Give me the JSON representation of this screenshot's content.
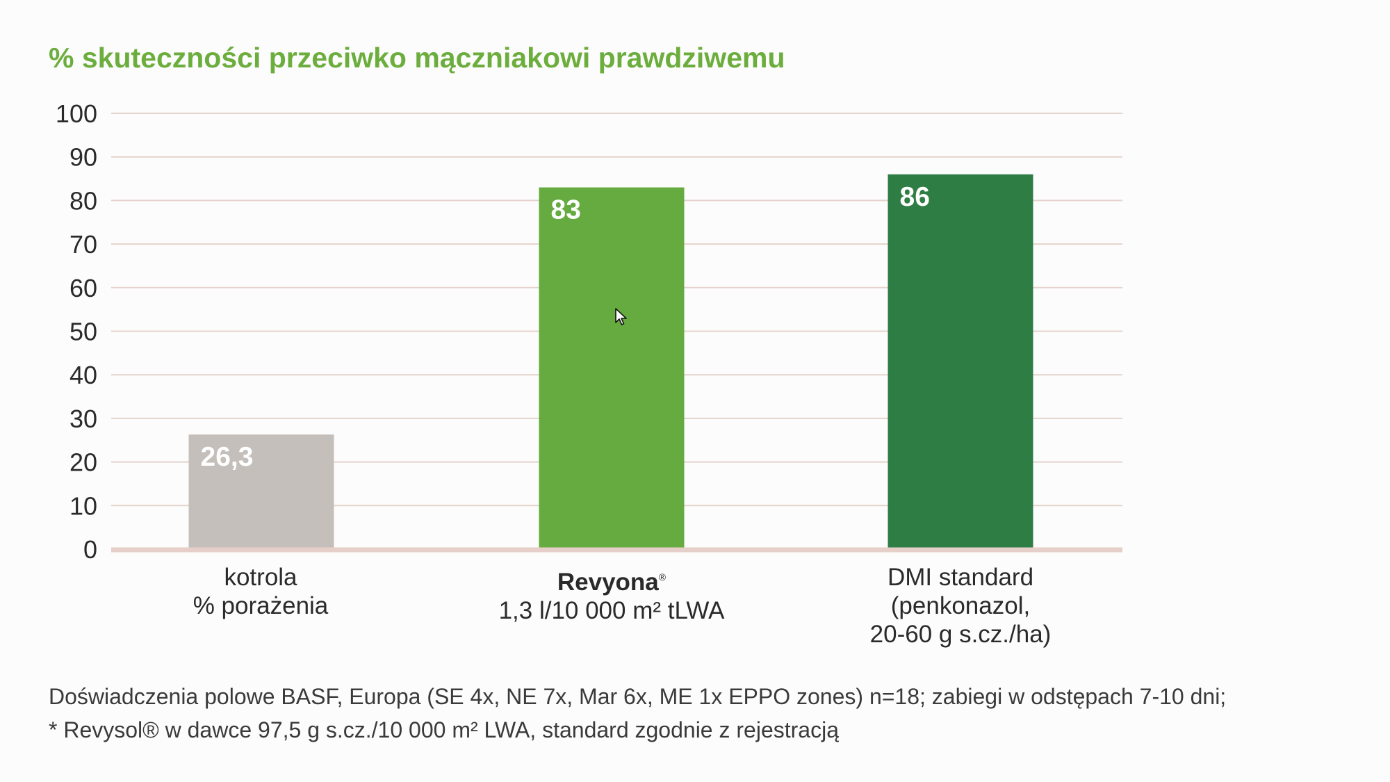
{
  "chart_data": {
    "type": "bar",
    "title": "% skuteczności przeciwko mączniakowi prawdziwemu",
    "ylim": [
      0,
      100
    ],
    "yticks": [
      0,
      10,
      20,
      30,
      40,
      50,
      60,
      70,
      80,
      90,
      100
    ],
    "grid": true,
    "categories": [
      {
        "line1": "kotrola",
        "line2": "% porażenia",
        "line3": ""
      },
      {
        "line1": "Revyona",
        "line1_sup": "®",
        "line2": "1,3 l/10 000 m² tLWA",
        "line3": ""
      },
      {
        "line1": "DMI standard",
        "line2": "(penkonazol,",
        "line3": "20-60 g s.cz./ha)"
      }
    ],
    "values": [
      26.3,
      83,
      86
    ],
    "value_labels": [
      "26,3",
      "83",
      "86"
    ],
    "colors": [
      "#c4bfba",
      "#65ab3f",
      "#2e7d44"
    ]
  },
  "footnote": {
    "line1": "Doświadczenia polowe BASF, Europa (SE 4x, NE 7x, Mar 6x, ME 1x EPPO zones) n=18; zabiegi w odstępach 7-10 dni;",
    "line2": "* Revysol® w dawce 97,5 g s.cz./10 000 m² LWA, standard zgodnie z rejestracją"
  }
}
